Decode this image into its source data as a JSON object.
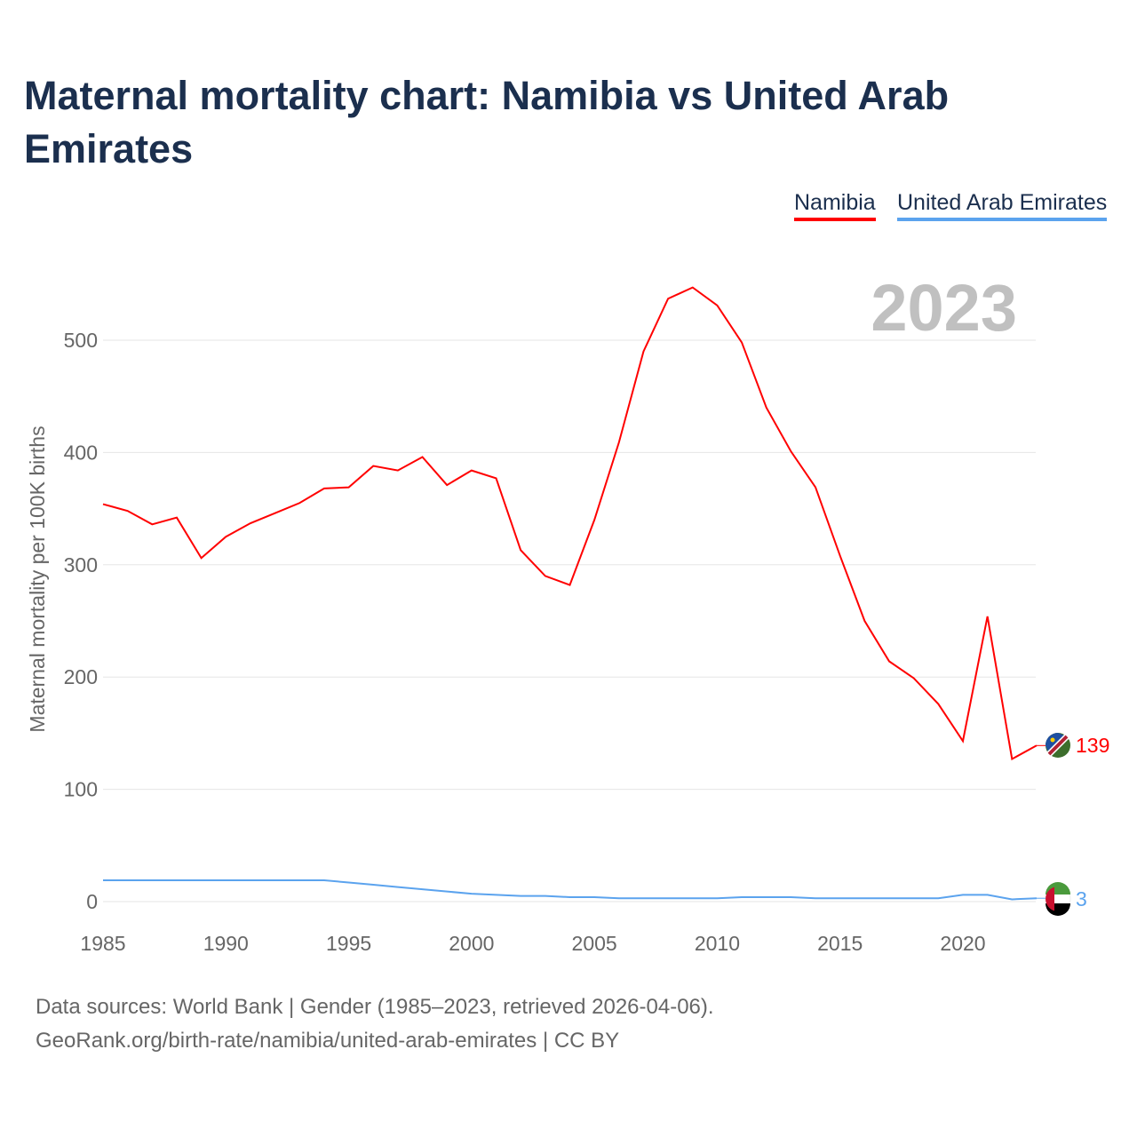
{
  "title": "Maternal mortality chart: Namibia vs United Arab Emirates",
  "year_label": "2023",
  "footer": {
    "line1": "Data sources: World Bank | Gender (1985–2023, retrieved 2026-04-06).",
    "line2": "GeoRank.org/birth-rate/namibia/united-arab-emirates | CC BY"
  },
  "chart_data": {
    "type": "line",
    "title": "Maternal mortality chart: Namibia vs United Arab Emirates",
    "xlabel": "",
    "ylabel": "Maternal mortality per 100K births",
    "xlim": [
      1985,
      2023
    ],
    "ylim": [
      0,
      560
    ],
    "xticks": [
      1985,
      1990,
      1995,
      2000,
      2005,
      2010,
      2015,
      2020
    ],
    "yticks": [
      0,
      100,
      200,
      300,
      400,
      500
    ],
    "legend_placement": "top-right",
    "x": [
      1985,
      1986,
      1987,
      1988,
      1989,
      1990,
      1991,
      1992,
      1993,
      1994,
      1995,
      1996,
      1997,
      1998,
      1999,
      2000,
      2001,
      2002,
      2003,
      2004,
      2005,
      2006,
      2007,
      2008,
      2009,
      2010,
      2011,
      2012,
      2013,
      2014,
      2015,
      2016,
      2017,
      2018,
      2019,
      2020,
      2021,
      2022,
      2023
    ],
    "series": [
      {
        "name": "Namibia",
        "color": "#ff0000",
        "end_label": "139",
        "values": [
          354,
          348,
          336,
          342,
          306,
          325,
          337,
          346,
          355,
          368,
          369,
          388,
          384,
          396,
          371,
          384,
          377,
          313,
          290,
          282,
          340,
          409,
          490,
          537,
          547,
          531,
          498,
          440,
          401,
          369,
          308,
          250,
          214,
          199,
          176,
          143,
          254,
          127,
          139
        ]
      },
      {
        "name": "United Arab Emirates",
        "color": "#5ba3ee",
        "end_label": "3",
        "values": [
          19,
          19,
          19,
          19,
          19,
          19,
          19,
          19,
          19,
          19,
          17,
          15,
          13,
          11,
          9,
          7,
          6,
          5,
          5,
          4,
          4,
          3,
          3,
          3,
          3,
          3,
          4,
          4,
          4,
          3,
          3,
          3,
          3,
          3,
          3,
          6,
          6,
          2,
          3
        ]
      }
    ]
  }
}
